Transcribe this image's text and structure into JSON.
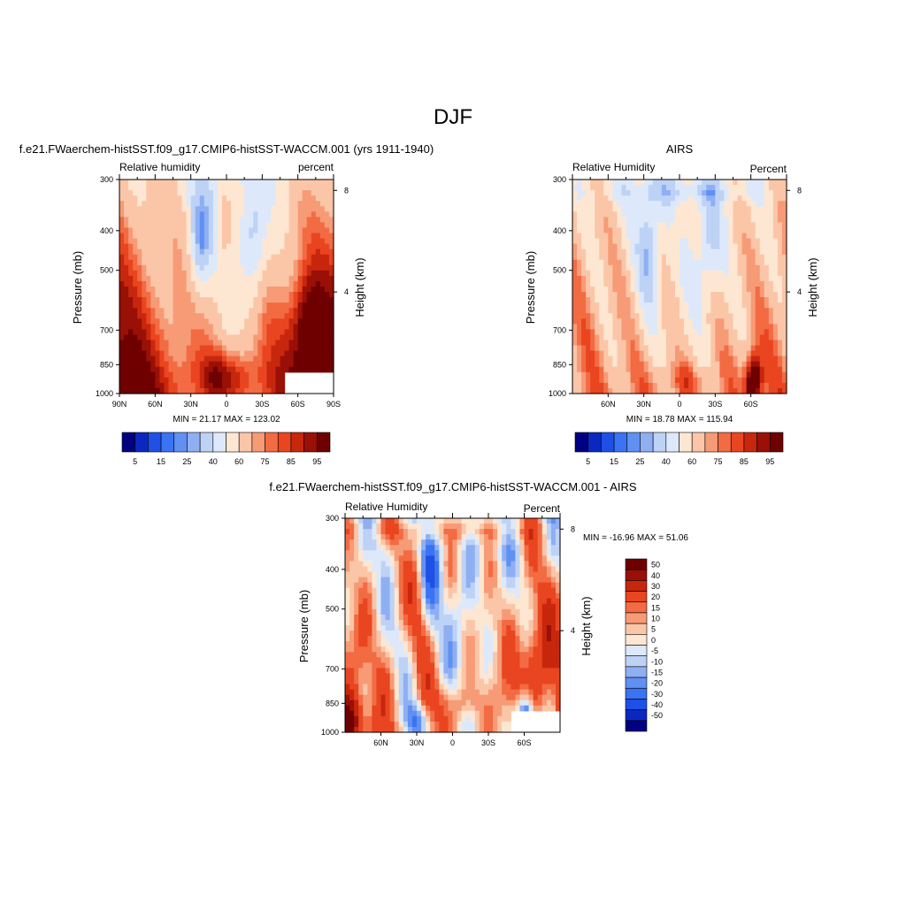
{
  "figure_title": "DJF",
  "chart_data": [
    {
      "type": "heatmap",
      "id": "model",
      "title": "f.e21.FWaerchem-histSST.f09_g17.CMIP6-histSST-WACCM.001 (yrs 1911-1940)",
      "left_label": "Relative humidity",
      "right_label": "percent",
      "ylabel": "Pressure (mb)",
      "y2label": "Height (km)",
      "xticks": [
        "90N",
        "60N",
        "30N",
        "0",
        "30S",
        "60S",
        "90S"
      ],
      "yticks": [
        "300",
        "400",
        "500",
        "700",
        "850",
        "1000"
      ],
      "y2ticks": [
        "8",
        "4"
      ],
      "stats": "MIN =  21.17  MAX = 123.02",
      "min": 21.17,
      "max": 123.02,
      "xlim": [
        90,
        -90
      ],
      "ylim": [
        1000,
        300
      ],
      "levels": [
        5,
        10,
        15,
        20,
        25,
        30,
        40,
        50,
        60,
        70,
        75,
        80,
        85,
        90,
        95
      ],
      "colorbar_labels": [
        "5",
        "15",
        "25",
        "40",
        "60",
        "75",
        "85",
        "95"
      ]
    },
    {
      "type": "heatmap",
      "id": "obs",
      "title": "AIRS",
      "left_label": "Relative Humidity",
      "right_label": "Percent",
      "ylabel": "Pressure (mb)",
      "y2label": "Height (km)",
      "xticks": [
        "60N",
        "30N",
        "0",
        "30S",
        "60S"
      ],
      "yticks": [
        "300",
        "400",
        "500",
        "700",
        "850",
        "1000"
      ],
      "y2ticks": [
        "8",
        "4"
      ],
      "stats": "MIN =  18.78  MAX = 115.94",
      "min": 18.78,
      "max": 115.94,
      "xlim": [
        90,
        -90
      ],
      "ylim": [
        1000,
        300
      ],
      "levels": [
        5,
        10,
        15,
        20,
        25,
        30,
        40,
        50,
        60,
        70,
        75,
        80,
        85,
        90,
        95
      ],
      "colorbar_labels": [
        "5",
        "15",
        "25",
        "40",
        "60",
        "75",
        "85",
        "95"
      ]
    },
    {
      "type": "heatmap",
      "id": "diff",
      "title": "f.e21.FWaerchem-histSST.f09_g17.CMIP6-histSST-WACCM.001 - AIRS",
      "left_label": "Relative Humidity",
      "right_label": "Percent",
      "ylabel": "Pressure (mb)",
      "y2label": "Height (km)",
      "xticks": [
        "60N",
        "30N",
        "0",
        "30S",
        "60S"
      ],
      "yticks": [
        "300",
        "400",
        "500",
        "700",
        "850",
        "1000"
      ],
      "y2ticks": [
        "8",
        "4"
      ],
      "stats": "MIN = -16.96  MAX =  51.06",
      "min": -16.96,
      "max": 51.06,
      "xlim": [
        90,
        -90
      ],
      "ylim": [
        1000,
        300
      ],
      "levels": [
        -50,
        -40,
        -30,
        -20,
        -15,
        -10,
        -5,
        0,
        5,
        10,
        15,
        20,
        30,
        40,
        50
      ],
      "colorbar_labels": [
        "50",
        "40",
        "30",
        "20",
        "15",
        "10",
        "5",
        "0",
        "-5",
        "-10",
        "-15",
        "-20",
        "-30",
        "-40",
        "-50"
      ]
    }
  ],
  "palette": [
    "#000080",
    "#0a28c0",
    "#1f50e6",
    "#3a73f3",
    "#6190f3",
    "#8eaff2",
    "#bdd2f5",
    "#dde9fa",
    "#fde7d2",
    "#fbc6a8",
    "#f79b77",
    "#f26b43",
    "#e84520",
    "#c7270d",
    "#9a1006",
    "#6e0000"
  ]
}
